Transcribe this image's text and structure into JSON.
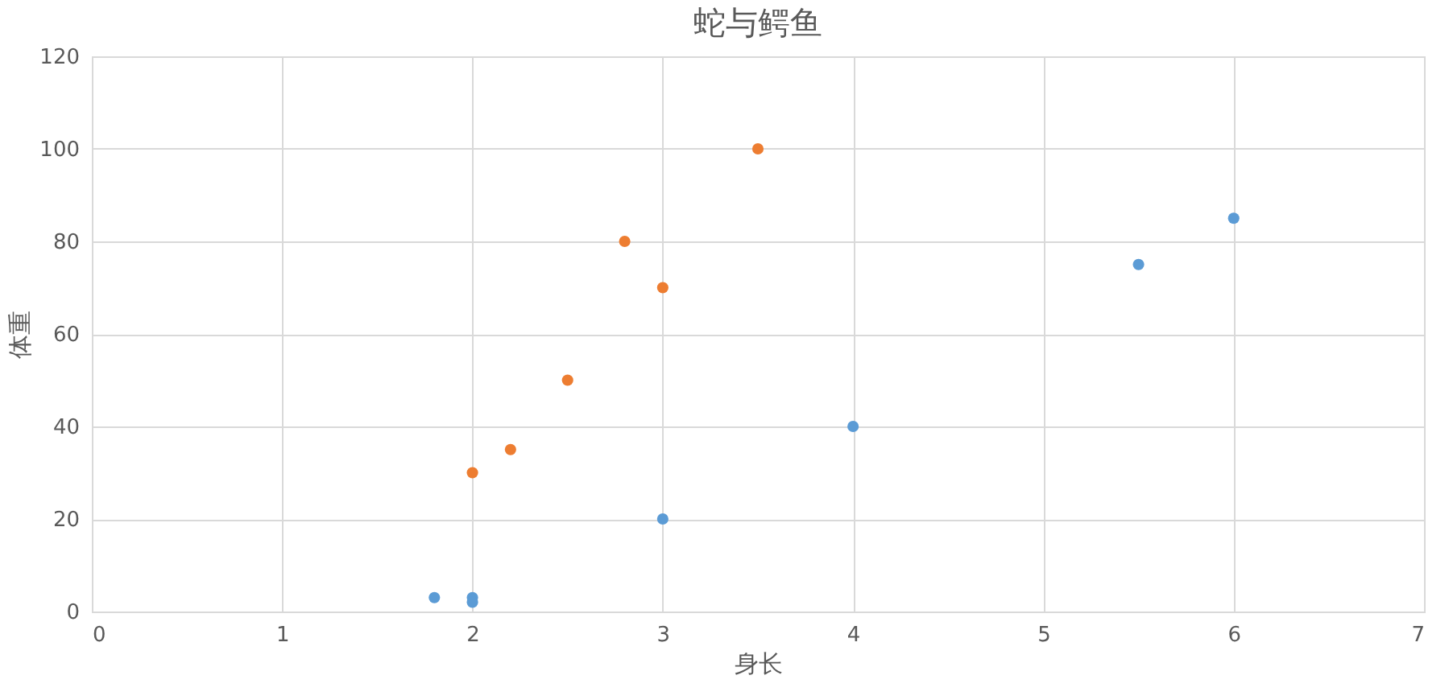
{
  "chart_data": {
    "type": "scatter",
    "title": "蛇与鳄鱼",
    "xlabel": "身长",
    "ylabel": "体重",
    "series": [
      {
        "color": "#5b9bd5",
        "x": [
          1.8,
          2,
          2,
          3,
          4,
          5.5,
          6
        ],
        "values": [
          3,
          3,
          2,
          20,
          40,
          75,
          85
        ]
      },
      {
        "color": "#ed7d31",
        "x": [
          2,
          2.2,
          2.5,
          2.8,
          3,
          3.5
        ],
        "values": [
          30,
          35,
          50,
          80,
          70,
          100
        ]
      }
    ],
    "xlim": [
      0,
      7
    ],
    "xticks": [
      0,
      1,
      2,
      3,
      4,
      5,
      6,
      7
    ],
    "ylim": [
      0,
      120
    ],
    "yticks": [
      0,
      20,
      40,
      60,
      80,
      100,
      120
    ],
    "grid": true,
    "marker": "circle"
  }
}
